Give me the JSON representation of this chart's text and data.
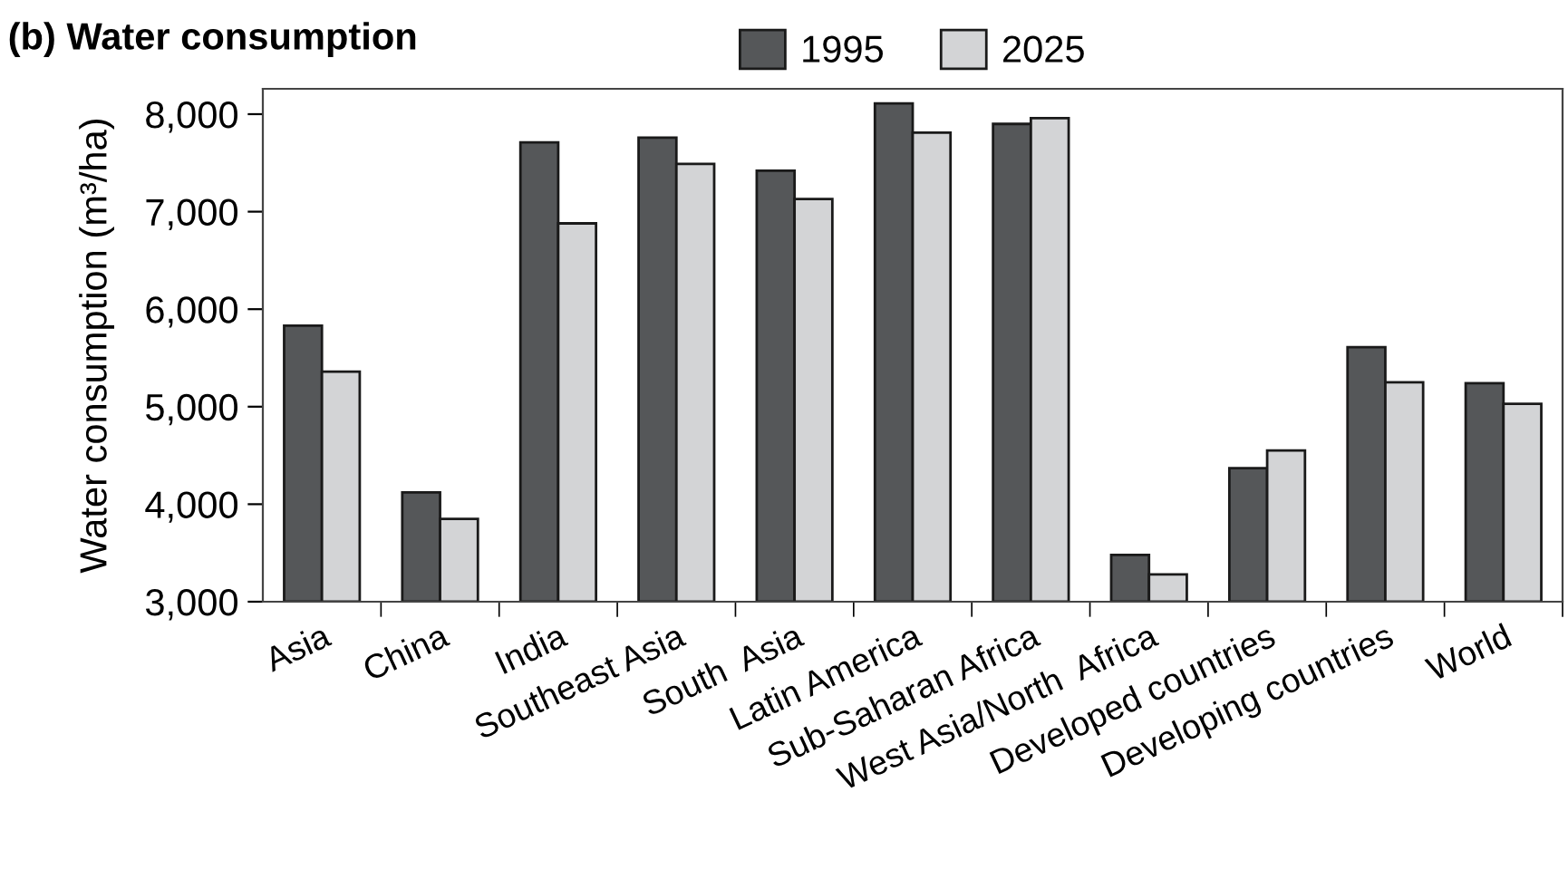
{
  "chart_data": {
    "type": "bar",
    "title": "(b) Water consumption",
    "ylabel": "Water consumption (m³/ha)",
    "categories": [
      "Asia",
      "China",
      "India",
      "Southeast Asia",
      "South  Asia",
      "Latin America",
      "Sub-Saharan Africa",
      "West Asia/North  Africa",
      "Developed countries",
      "Developing countries",
      "World"
    ],
    "series": [
      {
        "name": "1995",
        "color": "#555759",
        "values": [
          5830,
          4120,
          7710,
          7760,
          7420,
          8110,
          7900,
          3480,
          4370,
          5610,
          5240
        ]
      },
      {
        "name": "2025",
        "color": "#d3d4d6",
        "values": [
          5360,
          3850,
          6880,
          7490,
          7130,
          7810,
          7960,
          3280,
          4550,
          5250,
          5030
        ]
      }
    ],
    "ylim": [
      3000,
      8260
    ],
    "yticks": [
      {
        "value": 3000,
        "label": "3,000"
      },
      {
        "value": 4000,
        "label": "4,000"
      },
      {
        "value": 5000,
        "label": "5,000"
      },
      {
        "value": 6000,
        "label": "6,000"
      },
      {
        "value": 7000,
        "label": "7,000"
      },
      {
        "value": 8000,
        "label": "8,000"
      }
    ],
    "grid": false,
    "legend": "top"
  }
}
